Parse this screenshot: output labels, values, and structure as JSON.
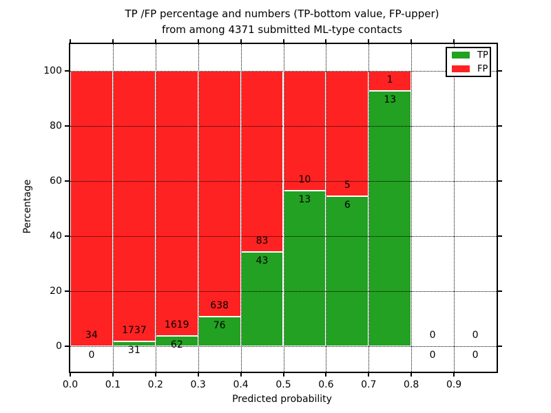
{
  "chart_data": {
    "type": "bar",
    "stacked": true,
    "title": "TP /FP percentage and numbers (TP-bottom value, FP-upper) from among 4371 submitted ML-type contacts",
    "title_lines": [
      "TP /FP percentage and numbers (TP-bottom value, FP-upper)",
      "from among 4371 submitted ML-type contacts"
    ],
    "xlabel": "Predicted probability",
    "ylabel": "Percentage",
    "x_tick_values": [
      0.0,
      0.1,
      0.2,
      0.3,
      0.4,
      0.5,
      0.6,
      0.7,
      0.8,
      0.9
    ],
    "x_tick_labels": [
      "0.0",
      "0.1",
      "0.2",
      "0.3",
      "0.4",
      "0.5",
      "0.6",
      "0.7",
      "0.8",
      "0.9"
    ],
    "y_ticks": [
      0,
      20,
      40,
      60,
      80,
      100
    ],
    "xlim": [
      0.0,
      1.0
    ],
    "ylim": [
      -9.25,
      109.75
    ],
    "grid": true,
    "grid_style": "dotted",
    "colors": {
      "tp": "#22a122",
      "fp": "#ff2222"
    },
    "legend": {
      "position": "upper-right",
      "entries": [
        {
          "label": "TP",
          "color": "#22a122"
        },
        {
          "label": "FP",
          "color": "#ff2222"
        }
      ]
    },
    "bins": [
      {
        "range": [
          0.0,
          0.1
        ],
        "tp": 0,
        "fp": 34
      },
      {
        "range": [
          0.1,
          0.2
        ],
        "tp": 31,
        "fp": 1737
      },
      {
        "range": [
          0.2,
          0.3
        ],
        "tp": 62,
        "fp": 1619
      },
      {
        "range": [
          0.3,
          0.4
        ],
        "tp": 76,
        "fp": 638
      },
      {
        "range": [
          0.4,
          0.5
        ],
        "tp": 43,
        "fp": 83
      },
      {
        "range": [
          0.5,
          0.6
        ],
        "tp": 13,
        "fp": 10
      },
      {
        "range": [
          0.6,
          0.7
        ],
        "tp": 6,
        "fp": 5
      },
      {
        "range": [
          0.7,
          0.8
        ],
        "tp": 13,
        "fp": 1
      },
      {
        "range": [
          0.8,
          0.9
        ],
        "tp": 0,
        "fp": 0
      },
      {
        "range": [
          0.9,
          1.0
        ],
        "tp": 0,
        "fp": 0
      }
    ]
  }
}
